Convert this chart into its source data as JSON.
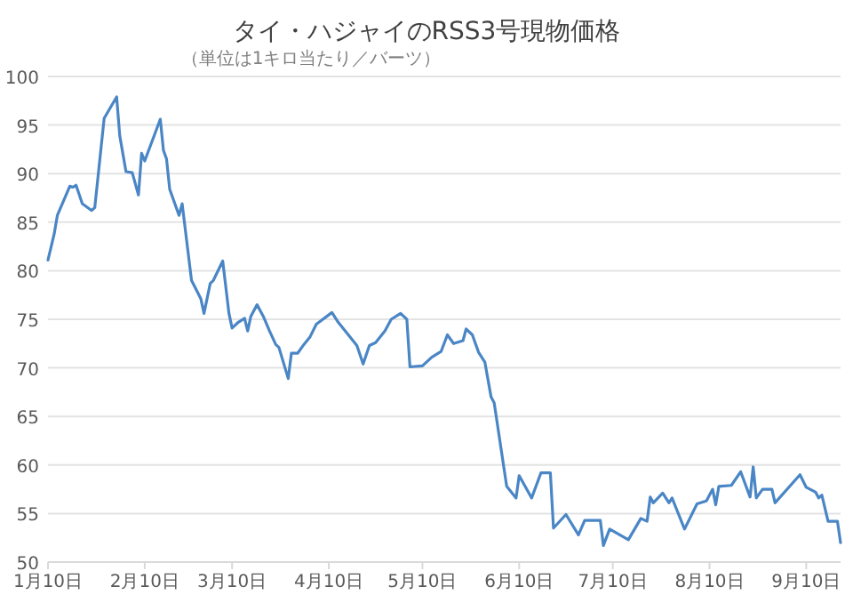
{
  "chart_data": {
    "type": "line",
    "title": "タイ・ハジャイのRSS3号現物価格",
    "subtitle": "（単位は1キロ当たり／バーツ）",
    "x": [
      "--01-10",
      "--01-12",
      "--01-13",
      "--01-17",
      "--01-18",
      "--01-19",
      "--01-21",
      "--01-24",
      "--01-25",
      "--01-28",
      "--02-01",
      "--02-02",
      "--02-04",
      "--02-06",
      "--02-08",
      "--02-09",
      "--02-10",
      "--02-15",
      "--02-16",
      "--02-17",
      "--02-18",
      "--02-21",
      "--02-22",
      "--02-25",
      "--02-28",
      "--03-01",
      "--03-03",
      "--03-04",
      "--03-07",
      "--03-09",
      "--03-10",
      "--03-12",
      "--03-14",
      "--03-15",
      "--03-16",
      "--03-18",
      "--03-20",
      "--03-22",
      "--03-24",
      "--03-25",
      "--03-28",
      "--03-29",
      "--03-31",
      "--04-02",
      "--04-04",
      "--04-06",
      "--04-11",
      "--04-13",
      "--04-19",
      "--04-21",
      "--04-23",
      "--04-25",
      "--04-28",
      "--04-30",
      "--05-03",
      "--05-05",
      "--05-06",
      "--05-10",
      "--05-13",
      "--05-16",
      "--05-18",
      "--05-20",
      "--05-23",
      "--05-24",
      "--05-26",
      "--05-28",
      "--05-30",
      "--06-01",
      "--06-02",
      "--06-06",
      "--06-09",
      "--06-10",
      "--06-14",
      "--06-17",
      "--06-20",
      "--06-21",
      "--06-25",
      "--06-29",
      "--07-01",
      "--07-06",
      "--07-07",
      "--07-09",
      "--07-15",
      "--07-19",
      "--07-21",
      "--07-22",
      "--07-23",
      "--07-26",
      "--07-28",
      "--07-29",
      "--08-02",
      "--08-06",
      "--08-09",
      "--08-11",
      "--08-12",
      "--08-13",
      "--08-17",
      "--08-20",
      "--08-23",
      "--08-24",
      "--08-25",
      "--08-27",
      "--08-30",
      "--08-31",
      "--09-08",
      "--09-10",
      "--09-13",
      "--09-14",
      "--09-15",
      "--09-17",
      "--09-20",
      "--09-21"
    ],
    "series": [
      {
        "color": "#4a86c5",
        "values": [
          81.1,
          83.8,
          85.7,
          88.7,
          88.6,
          88.8,
          86.9,
          86.2,
          86.5,
          95.7,
          97.9,
          93.9,
          90.2,
          90.1,
          87.8,
          92.1,
          91.3,
          95.6,
          92.4,
          91.5,
          88.4,
          85.7,
          86.9,
          79.0,
          77.1,
          75.6,
          78.7,
          79.0,
          81.0,
          75.6,
          74.1,
          74.7,
          75.1,
          73.8,
          75.3,
          76.5,
          75.3,
          73.8,
          72.4,
          72.1,
          68.9,
          71.5,
          71.5,
          72.4,
          73.2,
          74.5,
          75.7,
          74.7,
          72.3,
          70.4,
          72.3,
          72.6,
          73.8,
          75.0,
          75.6,
          75.0,
          70.1,
          70.2,
          71.1,
          71.7,
          73.4,
          72.5,
          72.8,
          74.0,
          73.4,
          71.6,
          70.6,
          67.0,
          66.4,
          57.8,
          56.6,
          58.9,
          56.6,
          59.2,
          59.2,
          53.5,
          54.9,
          52.8,
          54.3,
          54.3,
          51.7,
          53.4,
          52.3,
          54.5,
          54.2,
          56.7,
          56.1,
          57.1,
          56.1,
          56.6,
          53.4,
          56.0,
          56.3,
          57.5,
          55.9,
          57.8,
          57.9,
          59.3,
          56.7,
          59.8,
          56.6,
          57.5,
          57.5,
          56.1,
          59.0,
          57.7,
          57.2,
          56.6,
          56.9,
          54.2,
          54.2,
          52.0
        ]
      }
    ],
    "xlim": [
      "--01-10",
      "--09-21"
    ],
    "xticks": [
      {
        "value": "--01-10",
        "label": "1月10日"
      },
      {
        "value": "--02-10",
        "label": "2月10日"
      },
      {
        "value": "--03-10",
        "label": "3月10日"
      },
      {
        "value": "--04-10",
        "label": "4月10日"
      },
      {
        "value": "--05-10",
        "label": "5月10日"
      },
      {
        "value": "--06-10",
        "label": "6月10日"
      },
      {
        "value": "--07-10",
        "label": "7月10日"
      },
      {
        "value": "--08-10",
        "label": "8月10日"
      },
      {
        "value": "--09-10",
        "label": "9月10日"
      }
    ],
    "ylim": [
      50,
      100
    ],
    "yticks": [
      50,
      55,
      60,
      65,
      70,
      75,
      80,
      85,
      90,
      95,
      100
    ],
    "grid": "y"
  }
}
